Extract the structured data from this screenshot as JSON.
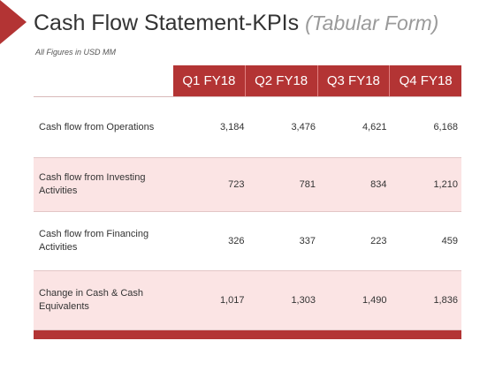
{
  "title": {
    "main": "Cash Flow Statement-KPIs",
    "sub": "(Tabular Form)"
  },
  "note": "All Figures in USD MM",
  "table": {
    "columns": [
      "Q1 FY18",
      "Q2 FY18",
      "Q3 FY18",
      "Q4 FY18"
    ],
    "rows": [
      {
        "label": "Cash flow from Operations",
        "values": [
          "3,184",
          "3,476",
          "4,621",
          "6,168"
        ]
      },
      {
        "label": "Cash flow from Investing Activities",
        "values": [
          "723",
          "781",
          "834",
          "1,210"
        ]
      },
      {
        "label": "Cash flow from Financing Activities",
        "values": [
          "326",
          "337",
          "223",
          "459"
        ]
      },
      {
        "label": "Change in Cash & Cash Equivalents",
        "values": [
          "1,017",
          "1,303",
          "1,490",
          "1,836"
        ]
      }
    ]
  },
  "colors": {
    "accent": "#b33434",
    "row_shade": "#fbe4e4",
    "title_text": "#333333",
    "subtitle_text": "#9a9a9a"
  }
}
